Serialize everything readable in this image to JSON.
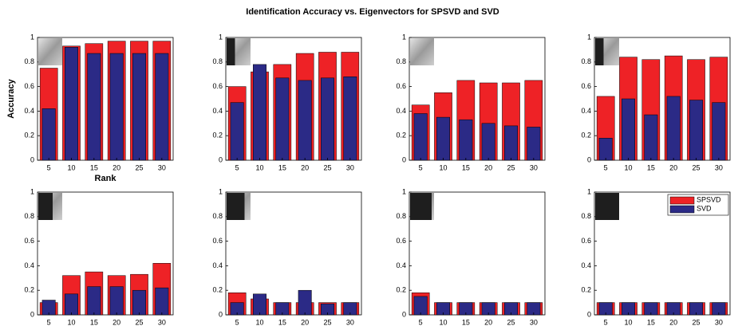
{
  "title": "Identification Accuracy vs. Eigenvectors for SPSVD and SVD",
  "chart_data": [
    {
      "type": "bar",
      "xlabel": "Rank",
      "ylabel": "Accuracy",
      "categories": [
        "5",
        "10",
        "15",
        "20",
        "25",
        "30"
      ],
      "ylim": [
        0,
        1
      ],
      "yticks": [
        0,
        0.2,
        0.4,
        0.6,
        0.8,
        1
      ],
      "series": [
        {
          "name": "SPSVD",
          "color": "#ee2226",
          "values": [
            0.75,
            0.93,
            0.95,
            0.97,
            0.97,
            0.97
          ]
        },
        {
          "name": "SVD",
          "color": "#2b2a86",
          "values": [
            0.42,
            0.92,
            0.87,
            0.87,
            0.87,
            0.87
          ]
        }
      ]
    },
    {
      "type": "bar",
      "categories": [
        "5",
        "10",
        "15",
        "20",
        "25",
        "30"
      ],
      "ylim": [
        0,
        1
      ],
      "yticks": [
        0,
        0.2,
        0.4,
        0.6,
        0.8,
        1
      ],
      "series": [
        {
          "name": "SPSVD",
          "color": "#ee2226",
          "values": [
            0.6,
            0.72,
            0.78,
            0.87,
            0.88,
            0.88
          ]
        },
        {
          "name": "SVD",
          "color": "#2b2a86",
          "values": [
            0.47,
            0.78,
            0.67,
            0.65,
            0.67,
            0.68
          ]
        }
      ]
    },
    {
      "type": "bar",
      "categories": [
        "5",
        "10",
        "15",
        "20",
        "25",
        "30"
      ],
      "ylim": [
        0,
        1
      ],
      "yticks": [
        0,
        0.2,
        0.4,
        0.6,
        0.8,
        1
      ],
      "series": [
        {
          "name": "SPSVD",
          "color": "#ee2226",
          "values": [
            0.45,
            0.55,
            0.65,
            0.63,
            0.63,
            0.65
          ]
        },
        {
          "name": "SVD",
          "color": "#2b2a86",
          "values": [
            0.38,
            0.35,
            0.33,
            0.3,
            0.28,
            0.27
          ]
        }
      ]
    },
    {
      "type": "bar",
      "categories": [
        "5",
        "10",
        "15",
        "20",
        "25",
        "30"
      ],
      "ylim": [
        0,
        1
      ],
      "yticks": [
        0,
        0.2,
        0.4,
        0.6,
        0.8,
        1
      ],
      "series": [
        {
          "name": "SPSVD",
          "color": "#ee2226",
          "values": [
            0.52,
            0.84,
            0.82,
            0.85,
            0.82,
            0.84
          ]
        },
        {
          "name": "SVD",
          "color": "#2b2a86",
          "values": [
            0.18,
            0.5,
            0.37,
            0.52,
            0.49,
            0.47
          ]
        }
      ]
    },
    {
      "type": "bar",
      "categories": [
        "5",
        "10",
        "15",
        "20",
        "25",
        "30"
      ],
      "ylim": [
        0,
        1
      ],
      "yticks": [
        0,
        0.2,
        0.4,
        0.6,
        0.8,
        1
      ],
      "series": [
        {
          "name": "SPSVD",
          "color": "#ee2226",
          "values": [
            0.1,
            0.32,
            0.35,
            0.32,
            0.33,
            0.42
          ]
        },
        {
          "name": "SVD",
          "color": "#2b2a86",
          "values": [
            0.12,
            0.17,
            0.23,
            0.23,
            0.2,
            0.22
          ]
        }
      ]
    },
    {
      "type": "bar",
      "categories": [
        "5",
        "10",
        "15",
        "20",
        "25",
        "30"
      ],
      "ylim": [
        0,
        1
      ],
      "yticks": [
        0,
        0.2,
        0.4,
        0.6,
        0.8,
        1
      ],
      "series": [
        {
          "name": "SPSVD",
          "color": "#ee2226",
          "values": [
            0.18,
            0.13,
            0.1,
            0.1,
            0.1,
            0.1
          ]
        },
        {
          "name": "SVD",
          "color": "#2b2a86",
          "values": [
            0.1,
            0.17,
            0.1,
            0.2,
            0.09,
            0.1
          ]
        }
      ]
    },
    {
      "type": "bar",
      "categories": [
        "5",
        "10",
        "15",
        "20",
        "25",
        "30"
      ],
      "ylim": [
        0,
        1
      ],
      "yticks": [
        0,
        0.2,
        0.4,
        0.6,
        0.8,
        1
      ],
      "series": [
        {
          "name": "SPSVD",
          "color": "#ee2226",
          "values": [
            0.18,
            0.1,
            0.1,
            0.1,
            0.1,
            0.1
          ]
        },
        {
          "name": "SVD",
          "color": "#2b2a86",
          "values": [
            0.15,
            0.1,
            0.1,
            0.1,
            0.1,
            0.1
          ]
        }
      ]
    },
    {
      "type": "bar",
      "legend": "top-right",
      "categories": [
        "5",
        "10",
        "15",
        "20",
        "25",
        "30"
      ],
      "ylim": [
        0,
        1
      ],
      "yticks": [
        0,
        0.2,
        0.4,
        0.6,
        0.8,
        1
      ],
      "series": [
        {
          "name": "SPSVD",
          "color": "#ee2226",
          "values": [
            0.1,
            0.1,
            0.1,
            0.1,
            0.1,
            0.1
          ]
        },
        {
          "name": "SVD",
          "color": "#2b2a86",
          "values": [
            0.1,
            0.1,
            0.1,
            0.1,
            0.1,
            0.1
          ]
        }
      ]
    }
  ]
}
